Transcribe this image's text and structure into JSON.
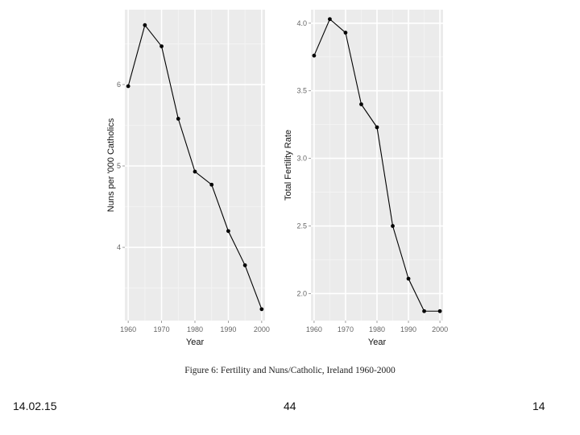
{
  "caption": "Figure 6: Fertility and Nuns/Catholic, Ireland 1960-2000",
  "footer": {
    "date": "14.02.15",
    "center": "44",
    "page": "14"
  },
  "chart_data": [
    {
      "type": "line",
      "xlabel": "Year",
      "ylabel": "Nuns per '000 Catholics",
      "x": [
        1960,
        1965,
        1970,
        1975,
        1980,
        1985,
        1990,
        1995,
        2000
      ],
      "values": [
        5.98,
        6.73,
        6.47,
        5.58,
        4.93,
        4.77,
        4.2,
        3.78,
        3.24
      ],
      "xlim": [
        1959,
        2001
      ],
      "ylim": [
        3.1,
        6.92
      ],
      "xticks": [
        "1960",
        "1970",
        "1980",
        "1990",
        "2000"
      ],
      "yticks": [
        "4",
        "5",
        "6"
      ],
      "grid": true,
      "background": "#ebebeb",
      "line_color": "#000000"
    },
    {
      "type": "line",
      "xlabel": "Year",
      "ylabel": "Total Fertility Rate",
      "x": [
        1960,
        1965,
        1970,
        1975,
        1980,
        1985,
        1990,
        1995,
        2000
      ],
      "values": [
        3.76,
        4.03,
        3.93,
        3.4,
        3.23,
        2.5,
        2.11,
        1.87,
        1.87
      ],
      "xlim": [
        1959,
        2001
      ],
      "ylim": [
        1.8,
        4.1
      ],
      "xticks": [
        "1960",
        "1970",
        "1980",
        "1990",
        "2000"
      ],
      "yticks": [
        "2.0",
        "2.5",
        "3.0",
        "3.5",
        "4.0"
      ],
      "grid": true,
      "background": "#ebebeb",
      "line_color": "#000000"
    }
  ]
}
